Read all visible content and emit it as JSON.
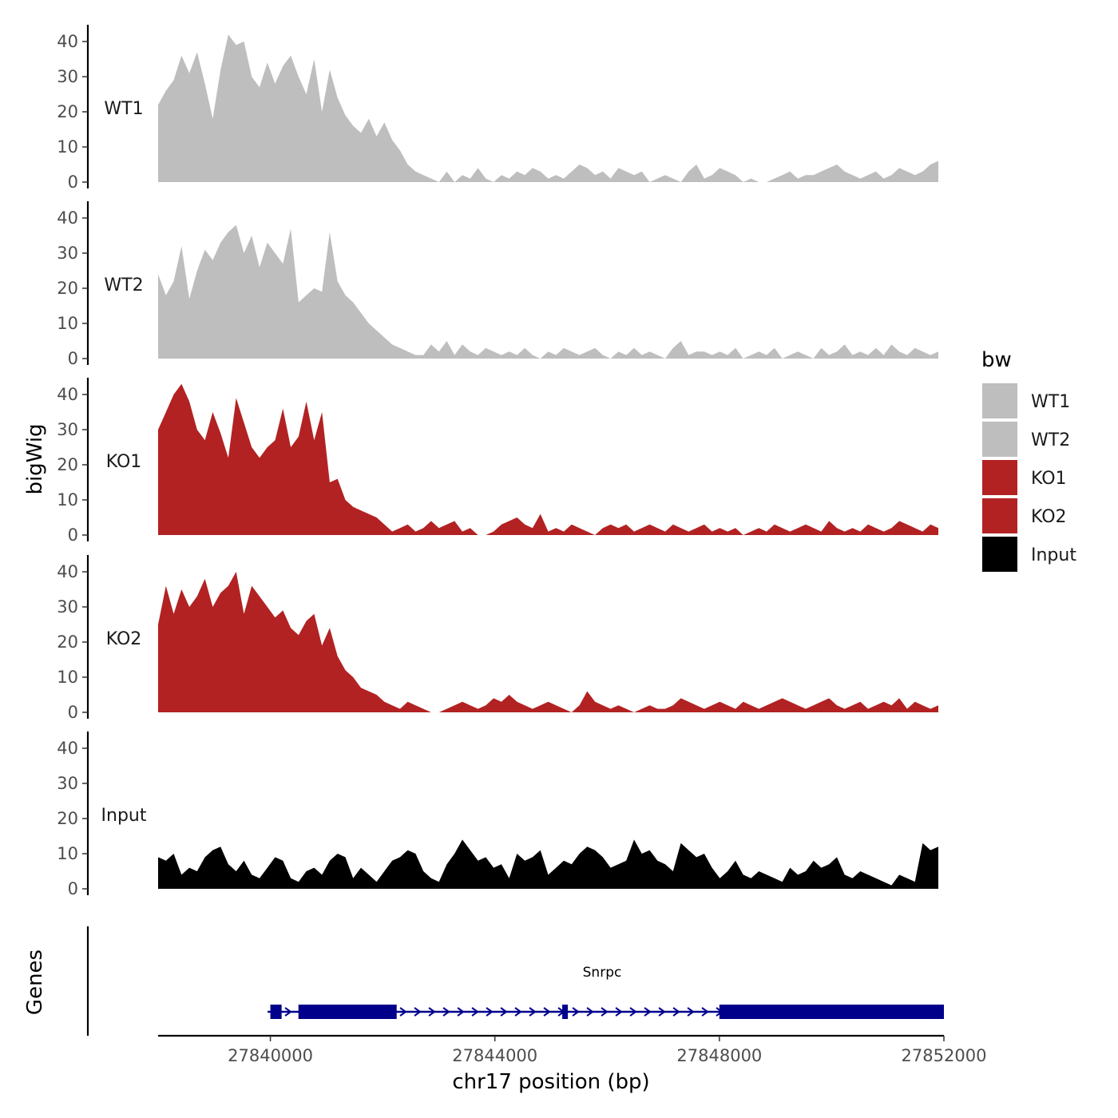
{
  "chart_data": {
    "type": "area",
    "ylabel": "bigWig",
    "xlabel": "chr17 position (bp)",
    "ylim": [
      0,
      45
    ],
    "yticks": [
      0,
      10,
      20,
      30,
      40
    ],
    "xlim": [
      27838000,
      27852000
    ],
    "xticks": [
      27840000,
      27844000,
      27848000,
      27852000
    ],
    "xtick_labels": [
      "27840000",
      "27844000",
      "27848000",
      "27852000"
    ],
    "legend": {
      "title": "bw",
      "position": "right",
      "entries": [
        {
          "label": "WT1",
          "color": "#bebebe"
        },
        {
          "label": "WT2",
          "color": "#bebebe"
        },
        {
          "label": "KO1",
          "color": "#b22222"
        },
        {
          "label": "KO2",
          "color": "#b22222"
        },
        {
          "label": "Input",
          "color": "#000000"
        }
      ]
    },
    "series": [
      {
        "name": "WT1",
        "color": "#bebebe",
        "x_start": 27838000,
        "x_end": 27851900,
        "values": [
          22,
          26,
          29,
          36,
          31,
          37,
          28,
          18,
          32,
          42,
          39,
          40,
          30,
          27,
          34,
          28,
          33,
          36,
          30,
          25,
          35,
          20,
          32,
          24,
          19,
          16,
          14,
          18,
          13,
          17,
          12,
          9,
          5,
          3,
          2,
          1,
          0,
          3,
          0,
          2,
          1,
          4,
          1,
          0,
          2,
          1,
          3,
          2,
          4,
          3,
          1,
          2,
          1,
          3,
          5,
          4,
          2,
          3,
          1,
          4,
          3,
          2,
          3,
          0,
          1,
          2,
          1,
          0,
          3,
          5,
          1,
          2,
          4,
          3,
          2,
          0,
          1,
          0,
          0,
          1,
          2,
          3,
          1,
          2,
          2,
          3,
          4,
          5,
          3,
          2,
          1,
          2,
          3,
          1,
          2,
          4,
          3,
          2,
          3,
          5,
          6
        ]
      },
      {
        "name": "WT2",
        "color": "#bebebe",
        "x_start": 27838000,
        "x_end": 27851900,
        "values": [
          24,
          18,
          22,
          32,
          17,
          25,
          31,
          28,
          33,
          36,
          38,
          30,
          35,
          26,
          33,
          30,
          27,
          37,
          16,
          18,
          20,
          19,
          36,
          22,
          18,
          16,
          13,
          10,
          8,
          6,
          4,
          3,
          2,
          1,
          1,
          4,
          2,
          5,
          1,
          4,
          2,
          1,
          3,
          2,
          1,
          2,
          1,
          3,
          1,
          0,
          2,
          1,
          3,
          2,
          1,
          2,
          3,
          1,
          0,
          2,
          1,
          3,
          1,
          2,
          1,
          0,
          3,
          5,
          1,
          2,
          2,
          1,
          2,
          1,
          3,
          0,
          1,
          2,
          1,
          3,
          0,
          1,
          2,
          1,
          0,
          3,
          1,
          2,
          4,
          1,
          2,
          1,
          3,
          1,
          4,
          2,
          1,
          3,
          2,
          1,
          2
        ]
      },
      {
        "name": "KO1",
        "color": "#b22222",
        "x_start": 27838000,
        "x_end": 27851900,
        "values": [
          30,
          35,
          40,
          43,
          38,
          30,
          27,
          35,
          29,
          22,
          39,
          32,
          25,
          22,
          25,
          27,
          36,
          25,
          28,
          38,
          27,
          35,
          15,
          16,
          10,
          8,
          7,
          6,
          5,
          3,
          1,
          2,
          3,
          1,
          2,
          4,
          2,
          3,
          4,
          1,
          2,
          0,
          0,
          1,
          3,
          4,
          5,
          3,
          2,
          6,
          1,
          2,
          1,
          3,
          2,
          1,
          0,
          2,
          3,
          2,
          3,
          1,
          2,
          3,
          2,
          1,
          3,
          2,
          1,
          2,
          3,
          1,
          2,
          1,
          2,
          0,
          1,
          2,
          1,
          3,
          2,
          1,
          2,
          3,
          2,
          1,
          4,
          2,
          1,
          2,
          1,
          3,
          2,
          1,
          2,
          4,
          3,
          2,
          1,
          3,
          2
        ]
      },
      {
        "name": "KO2",
        "color": "#b22222",
        "x_start": 27838000,
        "x_end": 27851900,
        "values": [
          25,
          36,
          28,
          35,
          30,
          33,
          38,
          30,
          34,
          36,
          40,
          28,
          36,
          33,
          30,
          27,
          29,
          24,
          22,
          26,
          28,
          19,
          24,
          16,
          12,
          10,
          7,
          6,
          5,
          3,
          2,
          1,
          3,
          2,
          1,
          0,
          0,
          1,
          2,
          3,
          2,
          1,
          2,
          4,
          3,
          5,
          3,
          2,
          1,
          2,
          3,
          2,
          1,
          0,
          2,
          6,
          3,
          2,
          1,
          2,
          1,
          0,
          1,
          2,
          1,
          1,
          2,
          4,
          3,
          2,
          1,
          2,
          3,
          2,
          1,
          3,
          2,
          1,
          2,
          3,
          4,
          3,
          2,
          1,
          2,
          3,
          4,
          2,
          1,
          2,
          3,
          1,
          2,
          3,
          2,
          4,
          1,
          3,
          2,
          1,
          2
        ]
      },
      {
        "name": "Input",
        "color": "#000000",
        "x_start": 27838000,
        "x_end": 27851900,
        "values": [
          9,
          8,
          10,
          4,
          6,
          5,
          9,
          11,
          12,
          7,
          5,
          8,
          4,
          3,
          6,
          9,
          8,
          3,
          2,
          5,
          6,
          4,
          8,
          10,
          9,
          3,
          6,
          4,
          2,
          5,
          8,
          9,
          11,
          10,
          5,
          3,
          2,
          7,
          10,
          14,
          11,
          8,
          9,
          6,
          7,
          3,
          10,
          8,
          9,
          11,
          4,
          6,
          8,
          7,
          10,
          12,
          11,
          9,
          6,
          7,
          8,
          14,
          10,
          11,
          8,
          7,
          5,
          13,
          11,
          9,
          10,
          6,
          3,
          5,
          8,
          4,
          3,
          5,
          4,
          3,
          2,
          6,
          4,
          5,
          8,
          6,
          7,
          9,
          4,
          3,
          5,
          4,
          3,
          2,
          1,
          4,
          3,
          2,
          13,
          11,
          12
        ]
      }
    ],
    "genes": {
      "panel_label": "Genes",
      "name": "Snrpc",
      "strand": "+",
      "line_start": 27839950,
      "line_end": 27852000,
      "exons": [
        [
          27840000,
          27840200
        ],
        [
          27840500,
          27842250
        ],
        [
          27845200,
          27845300
        ],
        [
          27848000,
          27852000
        ]
      ]
    }
  }
}
